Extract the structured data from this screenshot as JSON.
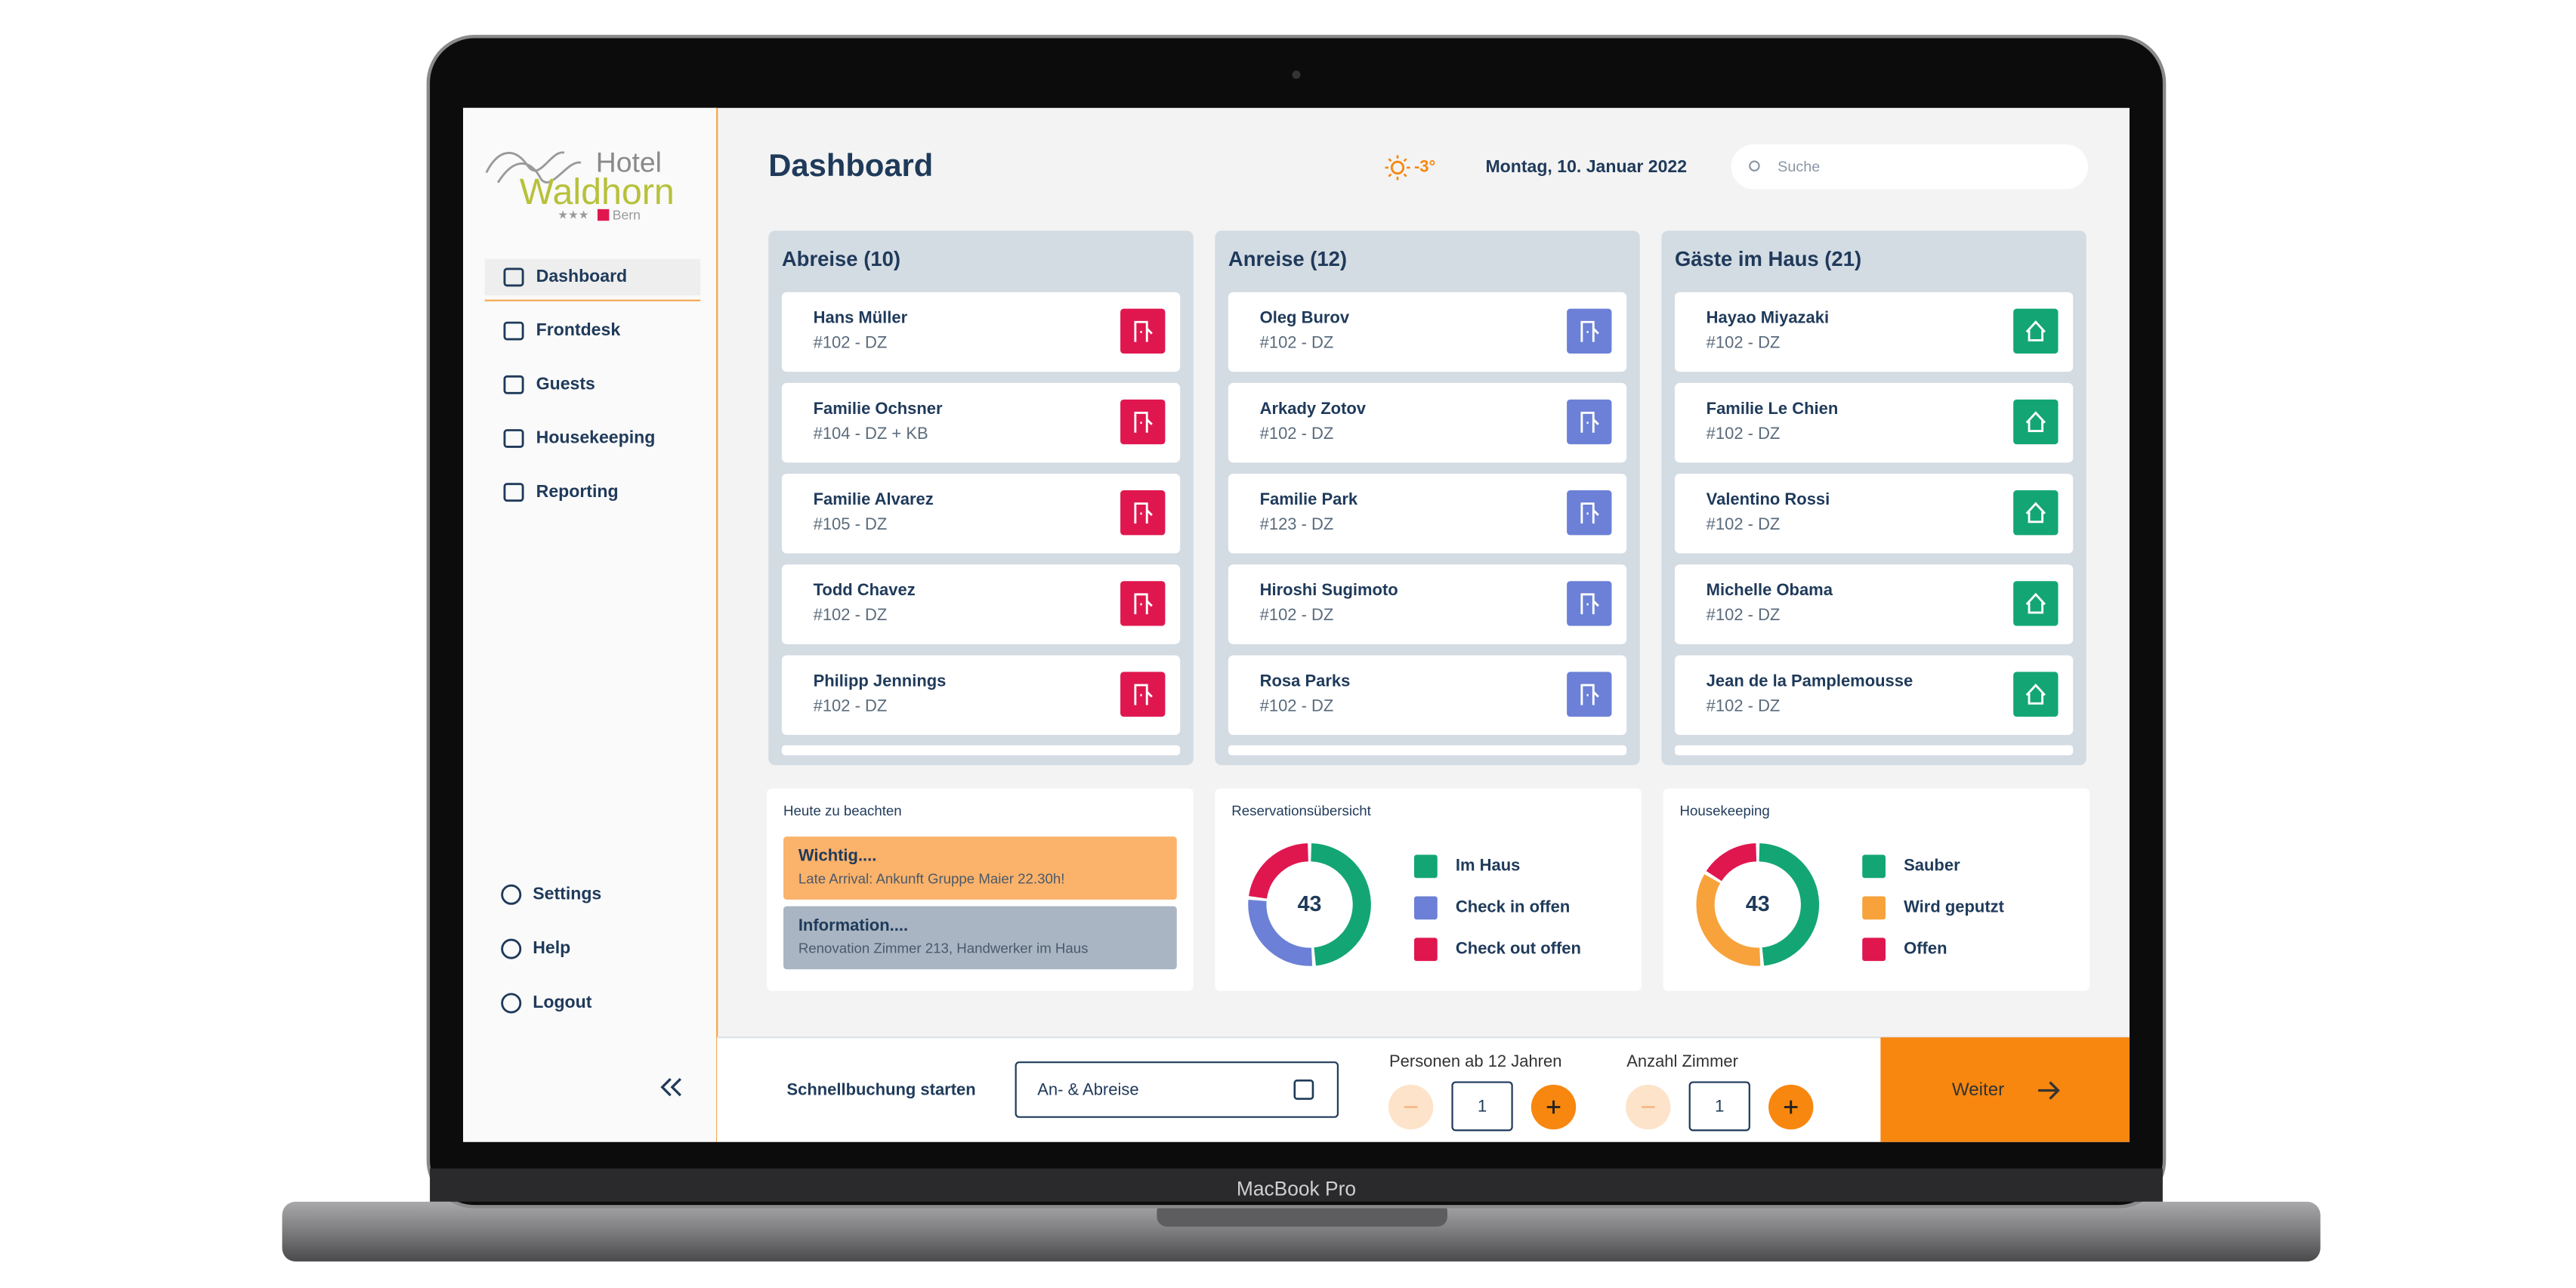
{
  "device_label": "MacBook Pro",
  "sidebar": {
    "logo": {
      "line1": "Hotel",
      "line2": "Waldhorn",
      "stars": "★★★",
      "city": "Bern"
    },
    "nav": [
      "Dashboard",
      "Frontdesk",
      "Guests",
      "Housekeeping",
      "Reporting"
    ],
    "footer_nav": [
      "Settings",
      "Help",
      "Logout"
    ]
  },
  "header": {
    "title": "Dashboard",
    "weather": "-3°",
    "date": "Montag, 10. Januar 2022",
    "search_placeholder": "Suche"
  },
  "columns": [
    {
      "title": "Abreise (10)",
      "color": "#e0174f",
      "cards": [
        {
          "name": "Hans Müller",
          "room": "#102 - DZ"
        },
        {
          "name": "Familie Ochsner",
          "room": "#104 - DZ + KB"
        },
        {
          "name": "Familie Alvarez",
          "room": "#105 - DZ"
        },
        {
          "name": "Todd Chavez",
          "room": "#102 - DZ"
        },
        {
          "name": "Philipp Jennings",
          "room": "#102 - DZ"
        }
      ]
    },
    {
      "title": "Anreise (12)",
      "color": "#6b80d6",
      "cards": [
        {
          "name": "Oleg Burov",
          "room": "#102 - DZ"
        },
        {
          "name": "Arkady Zotov",
          "room": "#102 - DZ"
        },
        {
          "name": "Familie Park",
          "room": "#123 - DZ"
        },
        {
          "name": "Hiroshi Sugimoto",
          "room": "#102 - DZ"
        },
        {
          "name": "Rosa Parks",
          "room": "#102 - DZ"
        }
      ]
    },
    {
      "title": "Gäste im Haus (21)",
      "color": "#13a674",
      "cards": [
        {
          "name": "Hayao Miyazaki",
          "room": "#102 - DZ"
        },
        {
          "name": "Familie Le Chien",
          "room": "#102 - DZ"
        },
        {
          "name": "Valentino Rossi",
          "room": "#102 - DZ"
        },
        {
          "name": "Michelle Obama",
          "room": "#102 - DZ"
        },
        {
          "name": "Jean de la Pamplemousse",
          "room": "#102 - DZ"
        }
      ]
    }
  ],
  "notes": {
    "title": "Heute zu beachten",
    "items": [
      {
        "title": "Wichtig....",
        "text": "Late Arrival: Ankunft Gruppe Maier 22.30h!",
        "color": "#fbb26a"
      },
      {
        "title": "Information....",
        "text": "Renovation Zimmer 213, Handwerker im Haus",
        "color": "#a9b5c2"
      }
    ]
  },
  "donuts": [
    {
      "title": "Reservationsübersicht",
      "total": 43,
      "segments": [
        {
          "name": "Im Haus",
          "color": "#13a674",
          "value": 21
        },
        {
          "name": "Check in offen",
          "color": "#6b80d6",
          "value": 12
        },
        {
          "name": "Check out offen",
          "color": "#e0174f",
          "value": 10
        }
      ]
    },
    {
      "title": "Housekeeping",
      "total": 43,
      "segments": [
        {
          "name": "Sauber",
          "color": "#13a674",
          "value": 21
        },
        {
          "name": "Wird geputzt",
          "color": "#f7a23a",
          "value": 15
        },
        {
          "name": "Offen",
          "color": "#e0174f",
          "value": 7
        }
      ]
    }
  ],
  "quick_booking": {
    "label": "Schnellbuchung starten",
    "date_placeholder": "An- & Abreise",
    "persons_label": "Personen ab 12 Jahren",
    "persons_value": "1",
    "rooms_label": "Anzahl Zimmer",
    "rooms_value": "1",
    "button": "Weiter"
  }
}
